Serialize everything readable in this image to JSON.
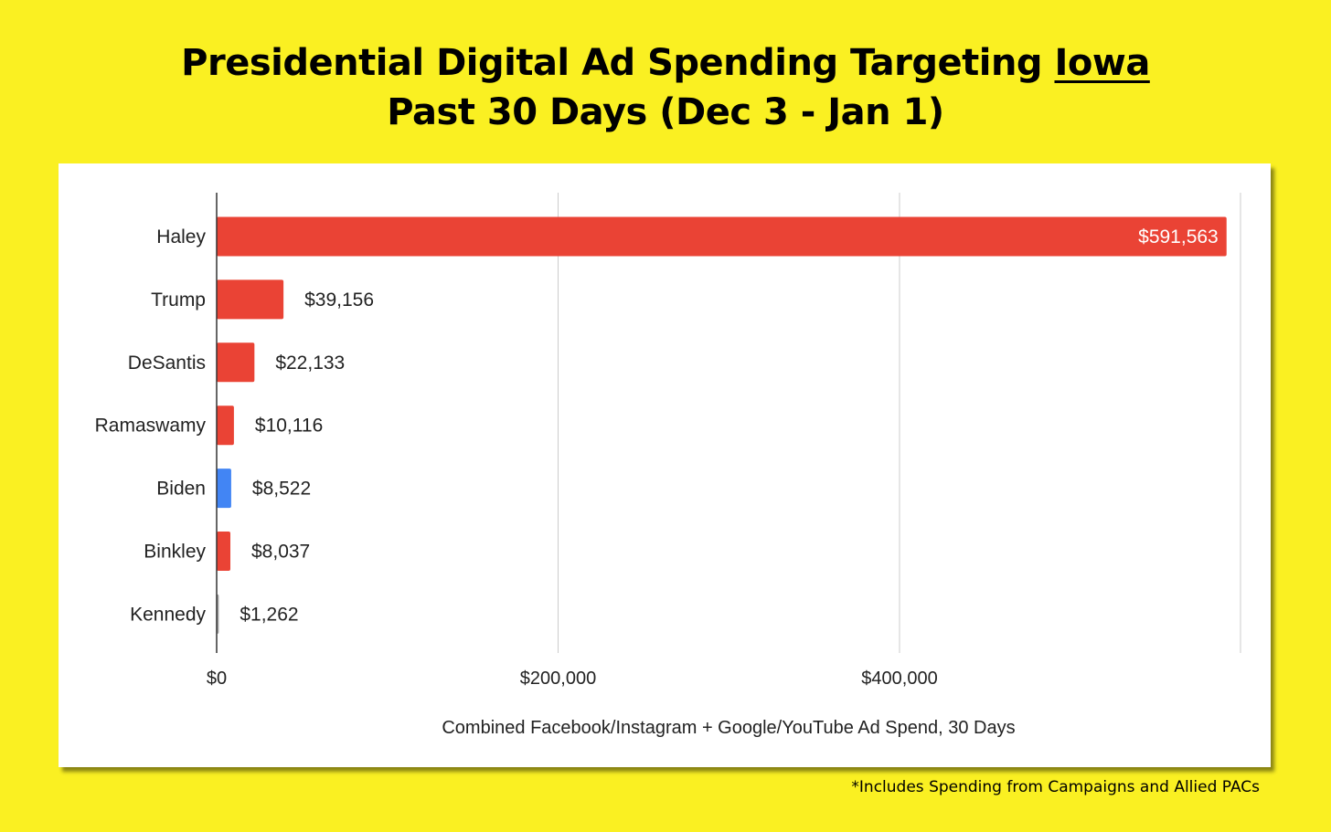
{
  "header": {
    "title_line1_prefix": "Presidential Digital Ad Spending Targeting ",
    "title_line1_emphasis": "Iowa",
    "title_line2": "Past 30 Days (Dec 3 - Jan 1)"
  },
  "footnote": "*Includes Spending from Campaigns and Allied PACs",
  "chart_data": {
    "type": "bar",
    "orientation": "horizontal",
    "categories": [
      "Haley",
      "Trump",
      "DeSantis",
      "Ramaswamy",
      "Biden",
      "Binkley",
      "Kennedy"
    ],
    "values": [
      591563,
      39156,
      22133,
      10116,
      8522,
      8037,
      1262
    ],
    "data_labels": [
      "$591,563",
      "$39,156",
      "$22,133",
      "$10,116",
      "$8,522",
      "$8,037",
      "$1,262"
    ],
    "bar_colors": [
      "#EA4335",
      "#EA4335",
      "#EA4335",
      "#EA4335",
      "#4285F4",
      "#EA4335",
      "#9E9E9E"
    ],
    "xlabel": "Combined Facebook/Instagram + Google/YouTube Ad Spend, 30 Days",
    "ylabel": "",
    "xlim": [
      0,
      600000
    ],
    "x_ticks": [
      0,
      200000,
      400000
    ],
    "x_tick_labels": [
      "$0",
      "$200,000",
      "$400,000"
    ],
    "grid": true,
    "legend": "none"
  }
}
